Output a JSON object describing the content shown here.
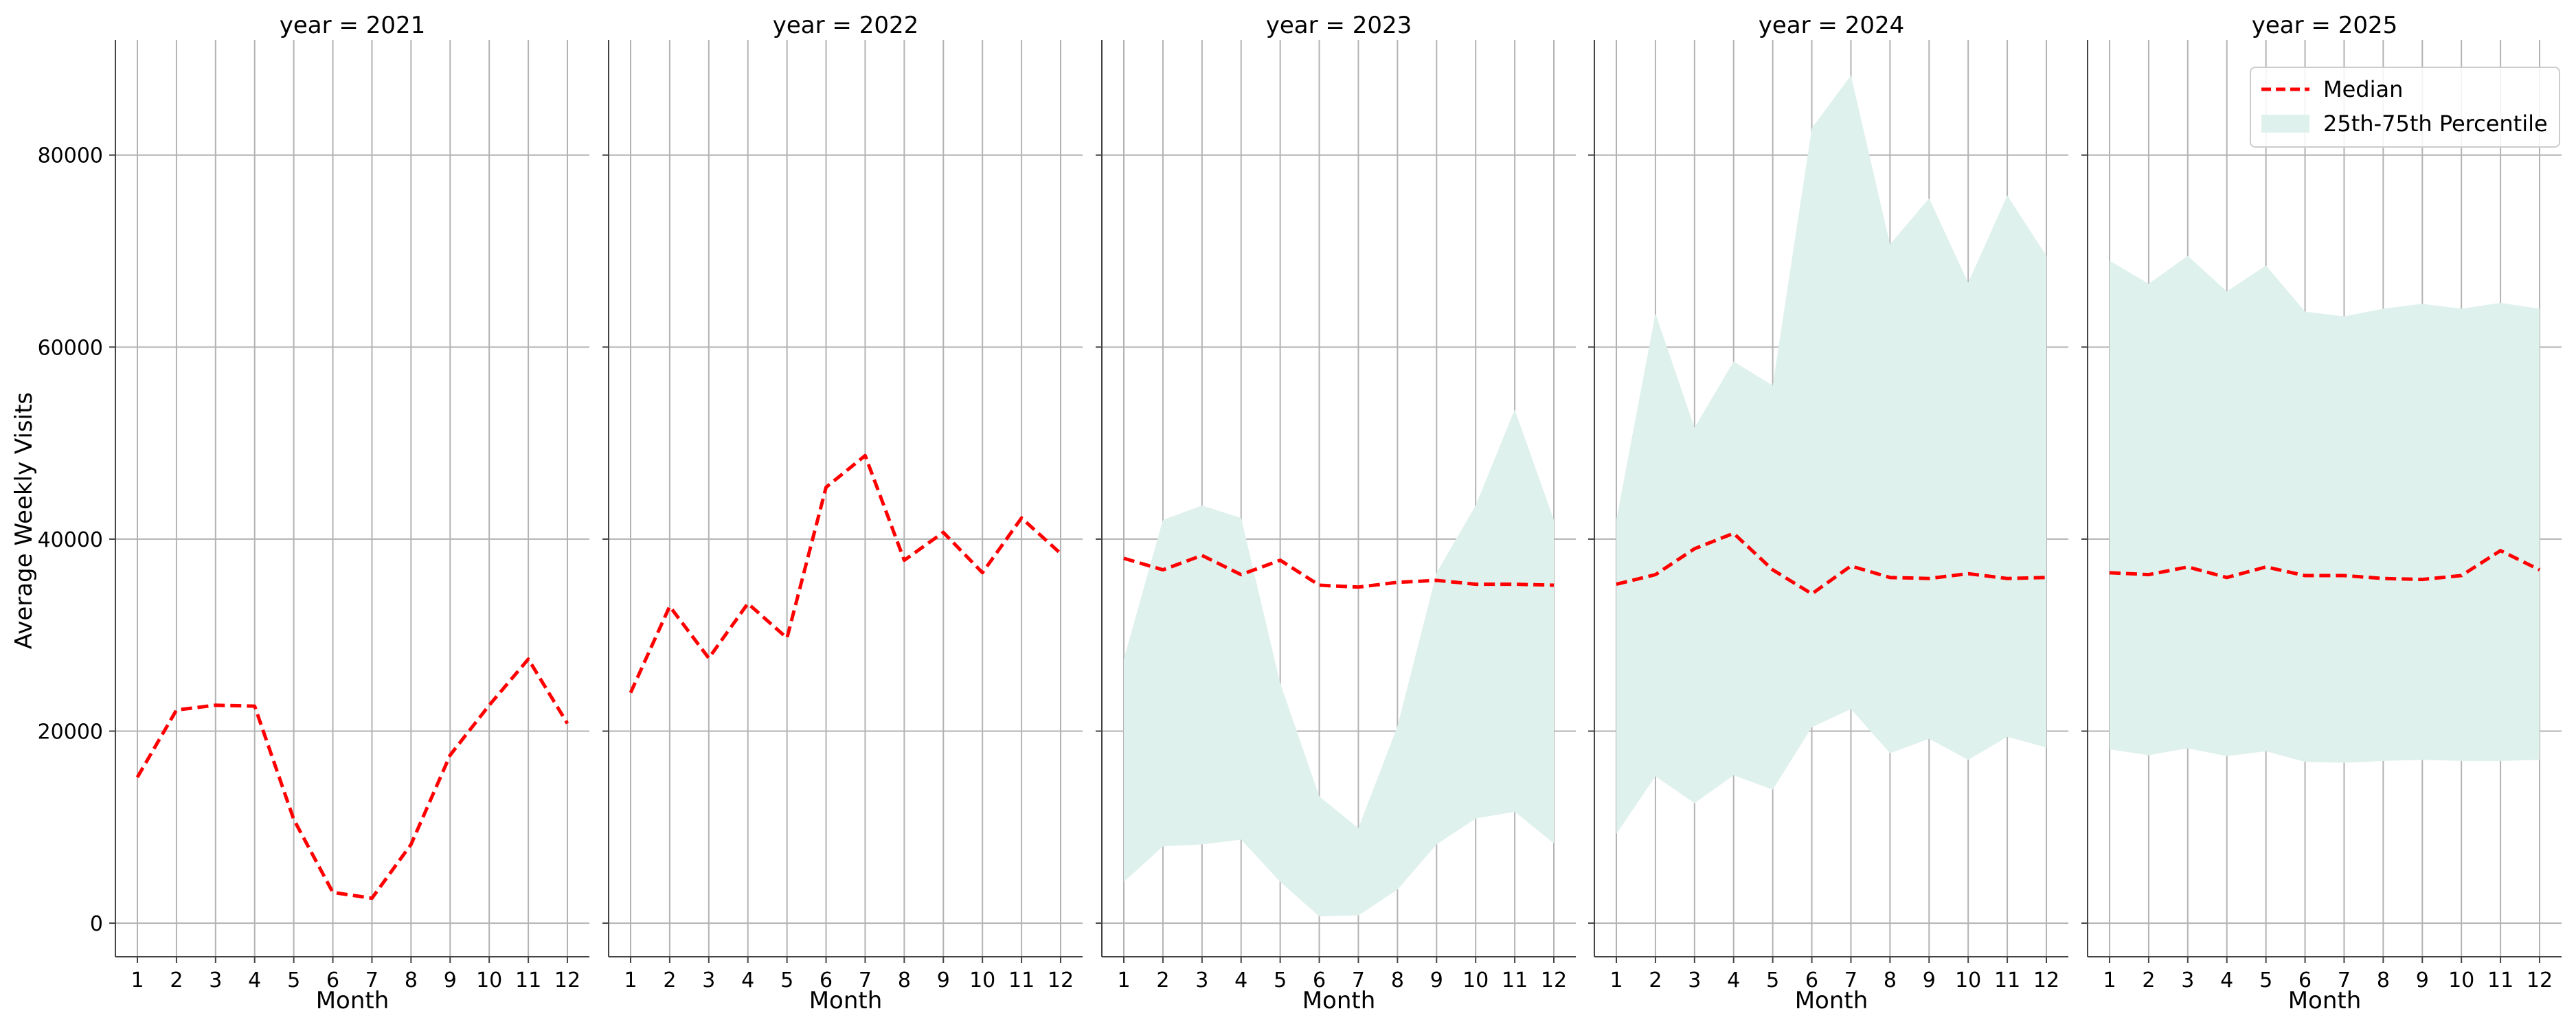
{
  "chart_data": {
    "type": "line",
    "ylabel": "Average Weekly Visits",
    "xlabel": "Month",
    "ylim": [
      -3500,
      92000
    ],
    "yticks": [
      0,
      20000,
      40000,
      60000,
      80000
    ],
    "xticks": [
      1,
      2,
      3,
      4,
      5,
      6,
      7,
      8,
      9,
      10,
      11,
      12
    ],
    "grid": true,
    "legend": {
      "placement": "top-right",
      "entries": [
        "Median",
        "25th-75th Percentile"
      ]
    },
    "colors": {
      "median": "#ff0000",
      "band": "#dff1ec"
    },
    "panels": [
      {
        "title": "year = 2021",
        "x": [
          1,
          2,
          3,
          4,
          5,
          6,
          7,
          8,
          9,
          10,
          11,
          12
        ],
        "series": [
          {
            "name": "Median",
            "values": [
              15200,
              22200,
              22700,
              22600,
              10800,
              3200,
              2600,
              8200,
              17500,
              22700,
              27500,
              20800
            ]
          }
        ],
        "band": null
      },
      {
        "title": "year = 2022",
        "x": [
          1,
          2,
          3,
          4,
          5,
          6,
          7,
          8,
          9,
          10,
          11,
          12
        ],
        "series": [
          {
            "name": "Median",
            "values": [
              24000,
              33000,
              27600,
              33300,
              29700,
              45400,
              48700,
              37800,
              40700,
              36500,
              42200,
              38500
            ]
          }
        ],
        "band": null
      },
      {
        "title": "year = 2023",
        "x": [
          1,
          2,
          3,
          4,
          5,
          6,
          7,
          8,
          9,
          10,
          11,
          12
        ],
        "series": [
          {
            "name": "Median",
            "values": [
              38000,
              36800,
              38300,
              36300,
              37800,
              35200,
              35000,
              35500,
              35700,
              35300,
              35300,
              35200
            ]
          }
        ],
        "band": {
          "name": "25th-75th Percentile",
          "lower": [
            4300,
            8000,
            8200,
            8700,
            4300,
            700,
            800,
            3500,
            8200,
            10900,
            11600,
            8300
          ],
          "upper": [
            27500,
            42000,
            43500,
            42200,
            25000,
            13200,
            9900,
            20500,
            36500,
            43500,
            53500,
            42000
          ]
        }
      },
      {
        "title": "year = 2024",
        "x": [
          1,
          2,
          3,
          4,
          5,
          6,
          7,
          8,
          9,
          10,
          11,
          12
        ],
        "series": [
          {
            "name": "Median",
            "values": [
              35300,
              36300,
              39000,
              40600,
              36800,
              34300,
              37200,
              36000,
              35900,
              36400,
              35900,
              36000
            ]
          }
        ],
        "band": {
          "name": "25th-75th Percentile",
          "lower": [
            9300,
            15300,
            12500,
            15400,
            13900,
            20400,
            22300,
            17700,
            19200,
            17000,
            19400,
            18300
          ],
          "upper": [
            42000,
            63500,
            51600,
            58500,
            56000,
            82800,
            88300,
            70700,
            75500,
            66700,
            75800,
            69500
          ]
        }
      },
      {
        "title": "year = 2025",
        "x": [
          1,
          2,
          3,
          4,
          5,
          6,
          7,
          8,
          9,
          10,
          11,
          12
        ],
        "series": [
          {
            "name": "Median",
            "values": [
              36500,
              36300,
              37100,
              36000,
              37100,
              36200,
              36200,
              35900,
              35800,
              36200,
              38800,
              36800
            ]
          }
        ],
        "band": {
          "name": "25th-75th Percentile",
          "lower": [
            18100,
            17500,
            18200,
            17400,
            17900,
            16800,
            16700,
            16900,
            17000,
            16900,
            16900,
            17000
          ],
          "upper": [
            69000,
            66600,
            69500,
            65800,
            68500,
            63700,
            63200,
            64000,
            64500,
            64000,
            64600,
            64000
          ]
        }
      }
    ]
  }
}
